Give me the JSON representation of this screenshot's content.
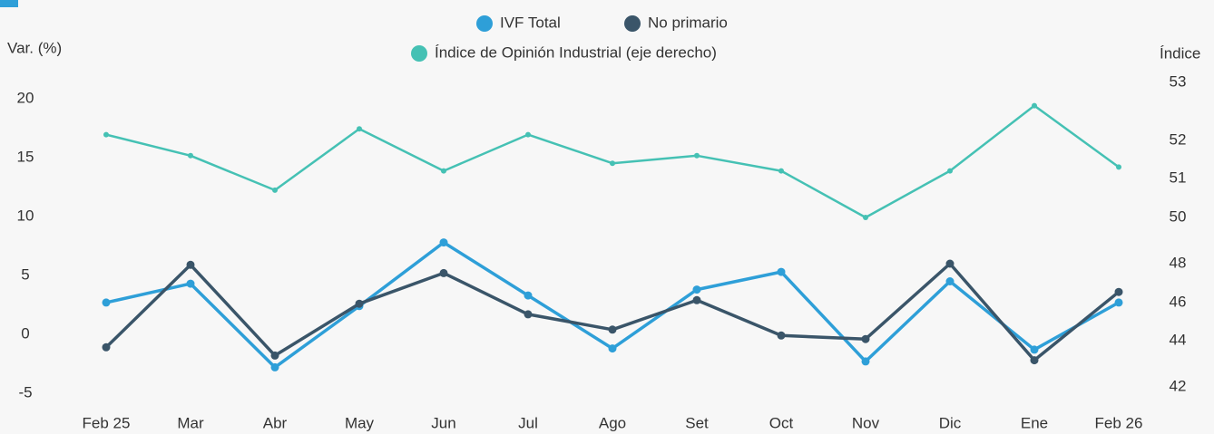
{
  "chart_data": {
    "type": "line",
    "y_label": "Var. (%)",
    "y2_label": "Índice",
    "categories": [
      "Feb 25",
      "Mar",
      "Abr",
      "May",
      "Jun",
      "Jul",
      "Ago",
      "Set",
      "Oct",
      "Nov",
      "Dic",
      "Ene",
      "Feb 26"
    ],
    "ylim": [
      -5,
      20
    ],
    "yticks": [
      -5,
      0,
      5,
      10,
      15,
      20
    ],
    "y2lim": [
      42,
      53
    ],
    "y2ticks": [
      42,
      44,
      46,
      48,
      50,
      51,
      52,
      53
    ],
    "grid": false,
    "series": [
      {
        "name": "IVF Total",
        "color": "#2e9fd8",
        "values": [
          2.7,
          4.3,
          -2.8,
          2.4,
          7.8,
          3.3,
          -1.2,
          3.8,
          5.3,
          -2.3,
          4.5,
          -1.3,
          2.7
        ]
      },
      {
        "name": "No primario",
        "color": "#3a5569",
        "values": [
          -1.1,
          5.9,
          -1.8,
          2.6,
          5.2,
          1.7,
          0.4,
          2.9,
          -0.1,
          -0.4,
          6.0,
          -2.2,
          3.6
        ]
      },
      {
        "name": "Índice de Opinión Industrial (eje derecho)",
        "color": "#45c1b4",
        "axis": "y2",
        "values": [
          52.1,
          51.6,
          50.7,
          52.2,
          51.2,
          52.1,
          51.4,
          51.6,
          51.2,
          50.0,
          51.2,
          52.6,
          51.3
        ]
      }
    ]
  }
}
